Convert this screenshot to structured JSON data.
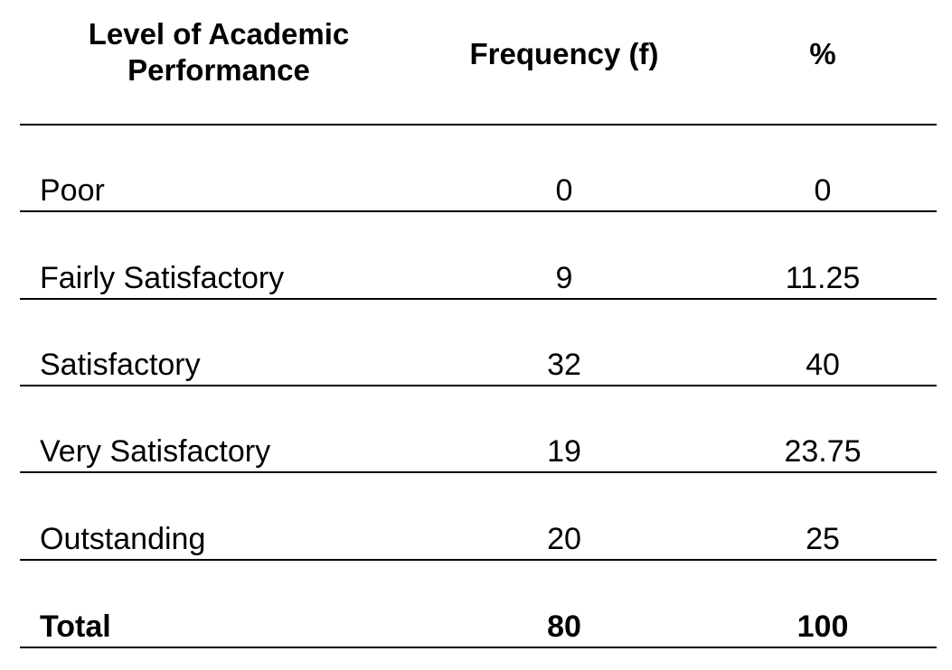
{
  "table": {
    "header": [
      "Level of Academic Performance",
      "Frequency (f)",
      "%"
    ],
    "rows": [
      [
        "Poor",
        0,
        0
      ],
      [
        "Fairly Satisfactory",
        9,
        11.25
      ],
      [
        "Satisfactory",
        32,
        40
      ],
      [
        "Very Satisfactory",
        19,
        23.75
      ],
      [
        "Outstanding",
        20,
        25
      ],
      [
        "Total",
        80,
        100
      ]
    ]
  }
}
